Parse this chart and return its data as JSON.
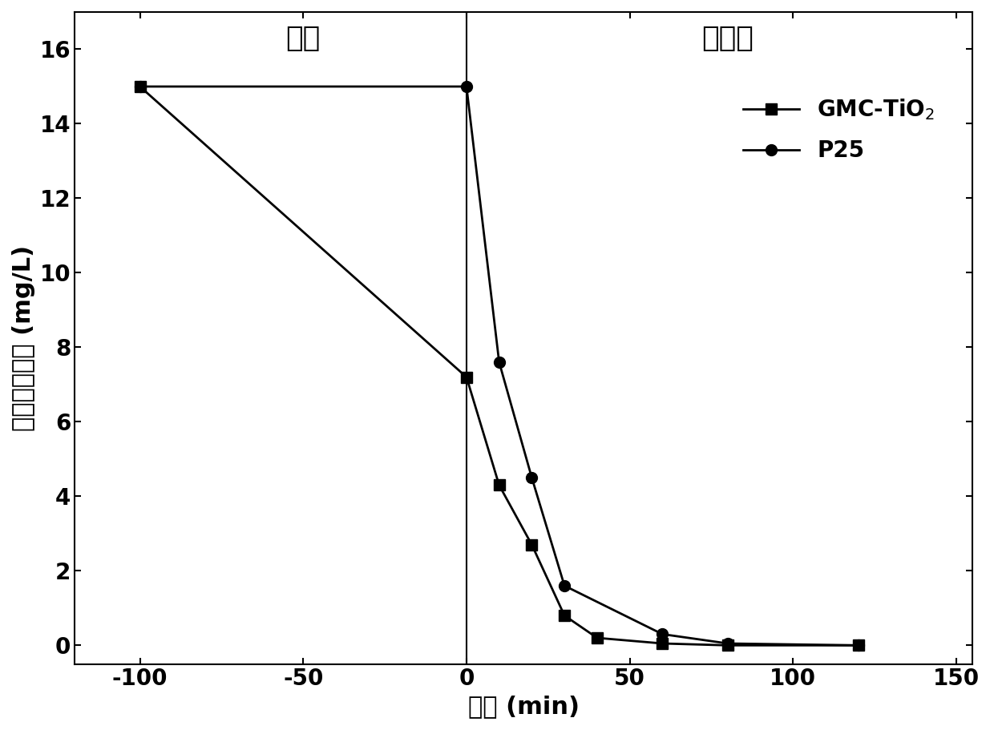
{
  "gmc_x": [
    -100,
    0,
    10,
    20,
    30,
    40,
    60,
    80,
    120
  ],
  "gmc_y": [
    15,
    7.2,
    4.3,
    2.7,
    0.8,
    0.2,
    0.05,
    0.0,
    0.0
  ],
  "p25_x": [
    -100,
    0,
    10,
    20,
    30,
    60,
    80,
    120
  ],
  "p25_y": [
    15,
    15,
    7.6,
    4.5,
    1.6,
    0.3,
    0.05,
    0.0
  ],
  "xlabel": "时间 (min)",
  "ylabel": "环丙沙星浓度 (mg/L)",
  "xlim": [
    -120,
    155
  ],
  "ylim": [
    -0.5,
    17
  ],
  "xticks": [
    -100,
    -50,
    0,
    50,
    100,
    150
  ],
  "yticks": [
    0,
    2,
    4,
    6,
    8,
    10,
    12,
    14,
    16
  ],
  "adsorption_label": "吸附",
  "photocatalysis_label": "光催化",
  "legend_gmc": "GMC-TiO$_2$",
  "legend_p25": "P25",
  "vline_x": 0,
  "line_color": "#000000",
  "marker_size": 10,
  "linewidth": 2.0,
  "fontsize_labels": 22,
  "fontsize_ticks": 20,
  "fontsize_annotations": 26,
  "fontsize_legend": 20,
  "adsorption_x": -50,
  "adsorption_y": 16.3,
  "photocatalysis_x": 80,
  "photocatalysis_y": 16.3
}
